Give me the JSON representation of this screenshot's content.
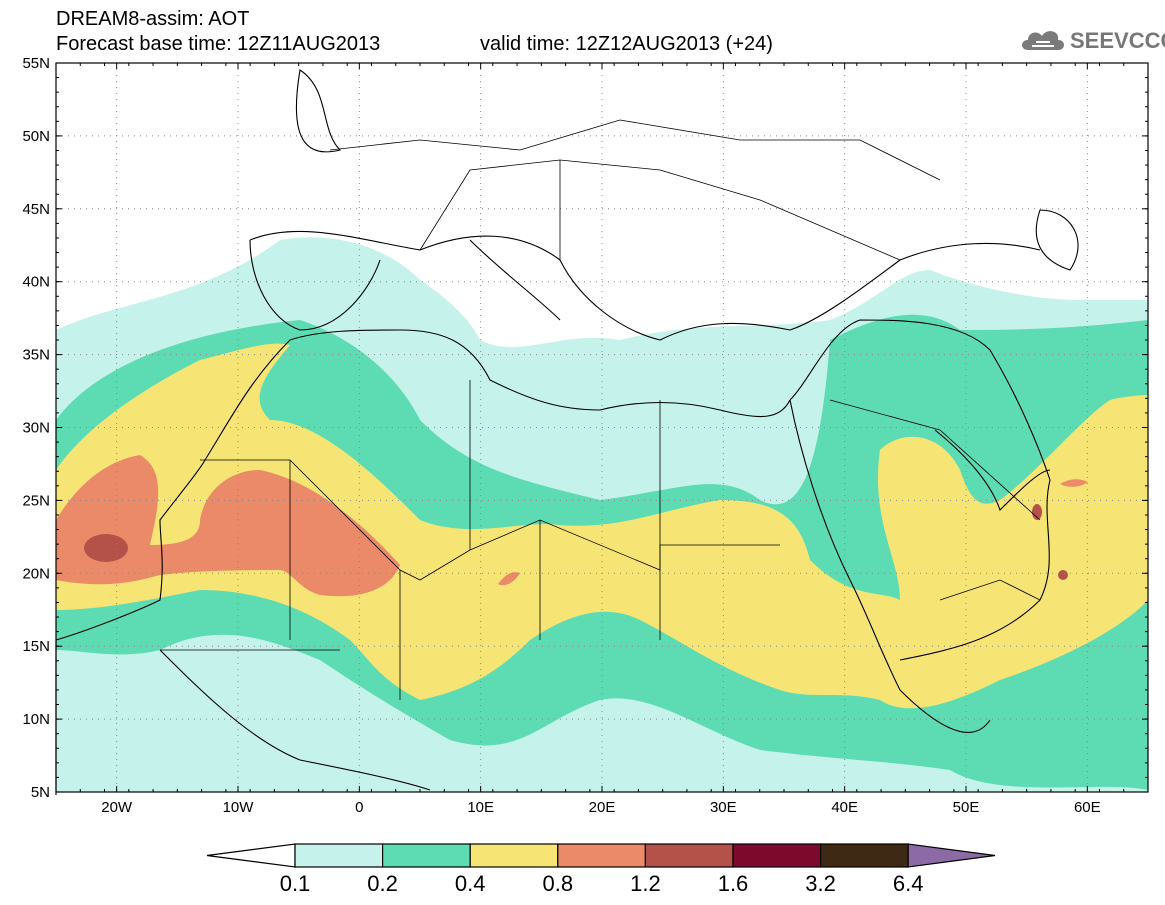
{
  "header": {
    "title_line1": "DREAM8-assim: AOT",
    "base_time": "Forecast base time: 12Z11AUG2013",
    "valid_time": "valid time: 12Z12AUG2013 (+24)",
    "logo_text": "SEEVCCC",
    "logo_icon": "cloud-icon"
  },
  "map": {
    "lon_range": [
      -25,
      65
    ],
    "lat_range": [
      5,
      55
    ],
    "lat_labels": [
      "55N",
      "50N",
      "45N",
      "40N",
      "35N",
      "30N",
      "25N",
      "20N",
      "15N",
      "10N",
      "5N"
    ],
    "lon_labels": [
      "20W",
      "10W",
      "0",
      "10E",
      "20E",
      "30E",
      "40E",
      "50E",
      "60E"
    ],
    "grid": "dotted"
  },
  "legend": {
    "thresholds": [
      "0.1",
      "0.2",
      "0.4",
      "0.8",
      "1.2",
      "1.6",
      "3.2",
      "6.4"
    ],
    "colors": [
      "#c6f2ec",
      "#5ddcb4",
      "#f6e574",
      "#eb8a68",
      "#b4524a",
      "#7d0a2d",
      "#3d2914",
      "#8c6aa6"
    ],
    "under_color": "#ffffff"
  }
}
